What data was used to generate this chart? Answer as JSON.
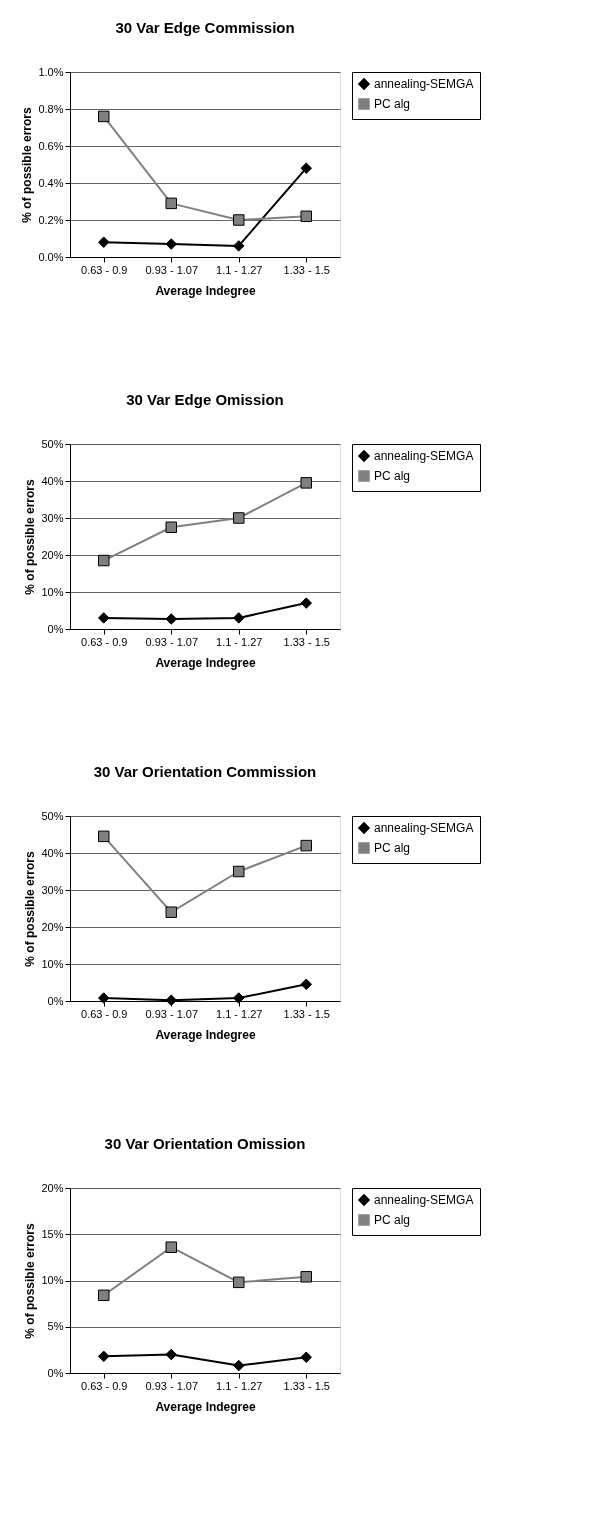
{
  "chart_data": [
    {
      "type": "line",
      "title": "30 Var Edge Commission",
      "xlabel": "Average Indegree",
      "ylabel": "% of possible errors",
      "categories": [
        "0.63 - 0.9",
        "0.93 - 1.07",
        "1.1 - 1.27",
        "1.33 - 1.5"
      ],
      "ylim": [
        0,
        1.0
      ],
      "yticks": [
        {
          "value": 0,
          "label": "0.0%"
        },
        {
          "value": 0.2,
          "label": "0.2%"
        },
        {
          "value": 0.4,
          "label": "0.4%"
        },
        {
          "value": 0.6,
          "label": "0.6%"
        },
        {
          "value": 0.8,
          "label": "0.8%"
        },
        {
          "value": 1.0,
          "label": "1.0%"
        }
      ],
      "grid": "y",
      "legend": "right",
      "series": [
        {
          "name": "annealing-SEMGA",
          "color": "#000000",
          "marker": "diamond",
          "values": [
            0.08,
            0.07,
            0.06,
            0.48
          ]
        },
        {
          "name": "PC alg",
          "color": "#808080",
          "marker": "square",
          "values": [
            0.76,
            0.29,
            0.2,
            0.22
          ]
        }
      ]
    },
    {
      "type": "line",
      "title": "30 Var Edge Omission",
      "xlabel": "Average Indegree",
      "ylabel": "% of possible errors",
      "categories": [
        "0.63 - 0.9",
        "0.93 - 1.07",
        "1.1 - 1.27",
        "1.33 - 1.5"
      ],
      "ylim": [
        0,
        50
      ],
      "yticks": [
        {
          "value": 0,
          "label": "0%"
        },
        {
          "value": 10,
          "label": "10%"
        },
        {
          "value": 20,
          "label": "20%"
        },
        {
          "value": 30,
          "label": "30%"
        },
        {
          "value": 40,
          "label": "40%"
        },
        {
          "value": 50,
          "label": "50%"
        }
      ],
      "grid": "y",
      "legend": "right",
      "series": [
        {
          "name": "annealing-SEMGA",
          "color": "#000000",
          "marker": "diamond",
          "values": [
            3,
            2.7,
            3,
            7
          ]
        },
        {
          "name": "PC alg",
          "color": "#808080",
          "marker": "square",
          "values": [
            18.5,
            27.5,
            30,
            39.5
          ]
        }
      ]
    },
    {
      "type": "line",
      "title": "30 Var Orientation Commission",
      "xlabel": "Average Indegree",
      "ylabel": "% of possible errors",
      "categories": [
        "0.63 - 0.9",
        "0.93 - 1.07",
        "1.1 - 1.27",
        "1.33 - 1.5"
      ],
      "ylim": [
        0,
        50
      ],
      "yticks": [
        {
          "value": 0,
          "label": "0%"
        },
        {
          "value": 10,
          "label": "10%"
        },
        {
          "value": 20,
          "label": "20%"
        },
        {
          "value": 30,
          "label": "30%"
        },
        {
          "value": 40,
          "label": "40%"
        },
        {
          "value": 50,
          "label": "50%"
        }
      ],
      "grid": "y",
      "legend": "right",
      "series": [
        {
          "name": "annealing-SEMGA",
          "color": "#000000",
          "marker": "diamond",
          "values": [
            0.8,
            0.2,
            0.8,
            4.5
          ]
        },
        {
          "name": "PC alg",
          "color": "#808080",
          "marker": "square",
          "values": [
            44.5,
            24,
            35,
            42
          ]
        }
      ]
    },
    {
      "type": "line",
      "title": "30 Var Orientation Omission",
      "xlabel": "Average Indegree",
      "ylabel": "% of possible errors",
      "categories": [
        "0.63 - 0.9",
        "0.93 - 1.07",
        "1.1 - 1.27",
        "1.33 - 1.5"
      ],
      "ylim": [
        0,
        20
      ],
      "yticks": [
        {
          "value": 0,
          "label": "0%"
        },
        {
          "value": 5,
          "label": "5%"
        },
        {
          "value": 10,
          "label": "10%"
        },
        {
          "value": 15,
          "label": "15%"
        },
        {
          "value": 20,
          "label": "20%"
        }
      ],
      "grid": "y",
      "legend": "right",
      "series": [
        {
          "name": "annealing-SEMGA",
          "color": "#000000",
          "marker": "diamond",
          "values": [
            1.8,
            2.0,
            0.8,
            1.7
          ]
        },
        {
          "name": "PC alg",
          "color": "#808080",
          "marker": "square",
          "values": [
            8.4,
            13.6,
            9.8,
            10.4
          ]
        }
      ]
    }
  ]
}
